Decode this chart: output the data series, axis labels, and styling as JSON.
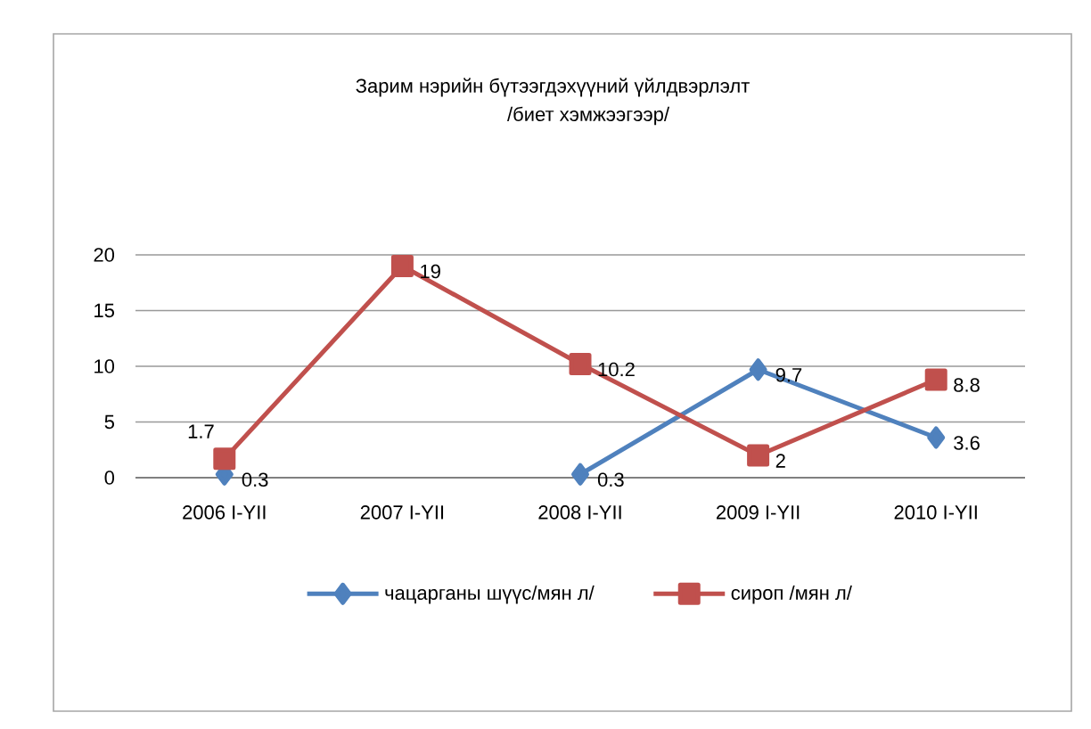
{
  "chart_data": {
    "type": "line",
    "title": "Зарим нэрийн бүтээгдэхүүний үйлдвэрлэлт",
    "subtitle": "/биет хэмжээгээр/",
    "categories": [
      "2006 I-YII",
      "2007 I-YII",
      "2008 I-YII",
      "2009 I-YII",
      "2010 I-YII"
    ],
    "series": [
      {
        "name": "чацарганы шүүс/мян л/",
        "color": "#4f81bd",
        "marker": "diamond",
        "values": [
          0.3,
          null,
          0.3,
          9.7,
          3.6
        ]
      },
      {
        "name": "сироп /мян л/",
        "color": "#c0504d",
        "marker": "square",
        "values": [
          1.7,
          19,
          10.2,
          2,
          8.8
        ]
      }
    ],
    "ylim": [
      0,
      20
    ],
    "yticks": [
      0,
      5,
      10,
      15,
      20
    ],
    "grid": "y",
    "legend": "bottom",
    "data_labels": true
  }
}
